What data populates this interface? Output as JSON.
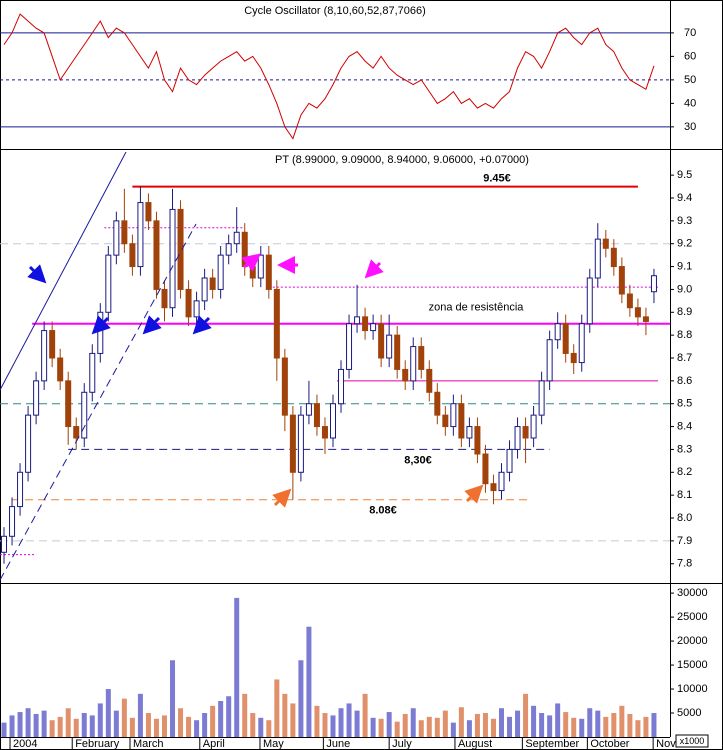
{
  "chart_data": {
    "type": "candlestick",
    "title": "PT (8.99000, 9.09000, 8.94000, 9.06000, +0.07000)",
    "up_color": "#1a1a80",
    "down_color": "#a0420a",
    "xlim": [
      -0.5,
      83
    ],
    "xticks": [
      {
        "value": 0.75,
        "label": "2004"
      },
      {
        "value": 8.5,
        "label": "February"
      },
      {
        "value": 15.7,
        "label": "March"
      },
      {
        "value": 24.4,
        "label": "April"
      },
      {
        "value": 31.9,
        "label": "May"
      },
      {
        "value": 39.8,
        "label": "June"
      },
      {
        "value": 48,
        "label": "July"
      },
      {
        "value": 56.2,
        "label": "August"
      },
      {
        "value": 64.6,
        "label": "September"
      },
      {
        "value": 72.7,
        "label": "October"
      },
      {
        "value": 80.9,
        "label": "Nov"
      }
    ],
    "ylim": [
      7.72,
      9.61
    ],
    "yticks": [
      7.8,
      7.9,
      {
        "value": 8,
        "label": "8.0"
      },
      8.1,
      8.2,
      8.3,
      8.4,
      8.5,
      8.6,
      8.7,
      8.8,
      8.9,
      {
        "value": 9,
        "label": "9.0"
      },
      9.1,
      9.2,
      9.3,
      9.4,
      9.5
    ],
    "candles": [
      [
        7.85,
        7.96,
        7.8,
        7.92
      ],
      [
        7.92,
        8.09,
        7.88,
        8.05
      ],
      [
        8.05,
        8.24,
        8.01,
        8.2
      ],
      [
        8.2,
        8.49,
        8.16,
        8.45
      ],
      [
        8.45,
        8.64,
        8.41,
        8.6
      ],
      [
        8.6,
        8.86,
        8.56,
        8.82
      ],
      [
        8.82,
        8.86,
        8.66,
        8.7
      ],
      [
        8.7,
        8.74,
        8.56,
        8.6
      ],
      [
        8.6,
        8.64,
        8.32,
        8.4
      ],
      [
        8.4,
        8.44,
        8.3,
        8.35
      ],
      [
        8.35,
        8.59,
        8.31,
        8.55
      ],
      [
        8.55,
        8.76,
        8.51,
        8.72
      ],
      [
        8.72,
        8.94,
        8.68,
        8.9
      ],
      [
        8.9,
        9.19,
        8.86,
        9.15
      ],
      [
        9.15,
        9.34,
        9.11,
        9.3
      ],
      [
        9.3,
        9.44,
        9.16,
        9.2
      ],
      [
        9.2,
        9.24,
        9.06,
        9.1
      ],
      [
        9.1,
        9.45,
        9.06,
        9.38
      ],
      [
        9.38,
        9.42,
        9.26,
        9.3
      ],
      [
        9.3,
        9.34,
        8.96,
        9.0
      ],
      [
        9.0,
        9.04,
        8.86,
        8.92
      ],
      [
        8.92,
        9.44,
        8.88,
        9.35
      ],
      [
        9.35,
        9.39,
        8.96,
        9.0
      ],
      [
        9.0,
        9.04,
        8.84,
        8.88
      ],
      [
        8.88,
        8.99,
        8.84,
        8.95
      ],
      [
        8.95,
        9.09,
        8.91,
        9.05
      ],
      [
        9.05,
        9.09,
        8.96,
        9.0
      ],
      [
        9.0,
        9.19,
        8.96,
        9.15
      ],
      [
        9.15,
        9.24,
        9.11,
        9.2
      ],
      [
        9.2,
        9.36,
        9.16,
        9.25
      ],
      [
        9.25,
        9.29,
        9.06,
        9.1
      ],
      [
        9.1,
        9.14,
        9.01,
        9.05
      ],
      [
        9.05,
        9.19,
        9.01,
        9.15
      ],
      [
        9.15,
        9.19,
        8.96,
        9.0
      ],
      [
        9.0,
        9.04,
        8.6,
        8.7
      ],
      [
        8.7,
        8.74,
        8.38,
        8.45
      ],
      [
        8.45,
        8.49,
        8.08,
        8.2
      ],
      [
        8.2,
        8.49,
        8.16,
        8.45
      ],
      [
        8.45,
        8.6,
        8.41,
        8.5
      ],
      [
        8.5,
        8.54,
        8.36,
        8.4
      ],
      [
        8.4,
        8.44,
        8.28,
        8.35
      ],
      [
        8.35,
        8.54,
        8.31,
        8.5
      ],
      [
        8.5,
        8.69,
        8.46,
        8.65
      ],
      [
        8.65,
        8.89,
        8.61,
        8.85
      ],
      [
        8.85,
        9.02,
        8.81,
        8.88
      ],
      [
        8.88,
        8.92,
        8.78,
        8.82
      ],
      [
        8.82,
        8.89,
        8.78,
        8.85
      ],
      [
        8.85,
        8.89,
        8.66,
        8.7
      ],
      [
        8.7,
        8.89,
        8.66,
        8.8
      ],
      [
        8.8,
        8.84,
        8.61,
        8.65
      ],
      [
        8.65,
        8.69,
        8.56,
        8.6
      ],
      [
        8.6,
        8.79,
        8.56,
        8.75
      ],
      [
        8.75,
        8.79,
        8.61,
        8.65
      ],
      [
        8.65,
        8.69,
        8.51,
        8.55
      ],
      [
        8.55,
        8.59,
        8.41,
        8.45
      ],
      [
        8.45,
        8.49,
        8.36,
        8.4
      ],
      [
        8.4,
        8.54,
        8.36,
        8.5
      ],
      [
        8.5,
        8.54,
        8.31,
        8.35
      ],
      [
        8.35,
        8.44,
        8.31,
        8.4
      ],
      [
        8.4,
        8.44,
        8.24,
        8.28
      ],
      [
        8.28,
        8.32,
        8.11,
        8.15
      ],
      [
        8.15,
        8.19,
        8.06,
        8.12
      ],
      [
        8.12,
        8.24,
        8.08,
        8.2
      ],
      [
        8.2,
        8.34,
        8.16,
        8.3
      ],
      [
        8.3,
        8.44,
        8.26,
        8.4
      ],
      [
        8.4,
        8.44,
        8.24,
        8.35
      ],
      [
        8.35,
        8.49,
        8.31,
        8.45
      ],
      [
        8.45,
        8.64,
        8.41,
        8.6
      ],
      [
        8.6,
        8.82,
        8.56,
        8.78
      ],
      [
        8.78,
        8.9,
        8.74,
        8.85
      ],
      [
        8.85,
        8.89,
        8.68,
        8.72
      ],
      [
        8.72,
        8.76,
        8.63,
        8.68
      ],
      [
        8.68,
        8.89,
        8.64,
        8.85
      ],
      [
        8.85,
        9.09,
        8.81,
        9.05
      ],
      [
        9.05,
        9.29,
        9.01,
        9.22
      ],
      [
        9.22,
        9.26,
        9.14,
        9.18
      ],
      [
        9.18,
        9.22,
        9.06,
        9.1
      ],
      [
        9.1,
        9.14,
        8.94,
        8.98
      ],
      [
        8.98,
        9.02,
        8.88,
        8.92
      ],
      [
        8.92,
        8.96,
        8.84,
        8.88
      ],
      [
        8.88,
        8.92,
        8.8,
        8.86
      ],
      [
        8.99,
        9.09,
        8.94,
        9.06
      ]
    ],
    "levels": [
      {
        "value": 9.45,
        "label": "9.45€",
        "color": "#e00000",
        "style": "solid",
        "x": [
          16,
          79
        ]
      },
      {
        "value": 8.85,
        "label": "zona de resistência",
        "color": "#ff00ff",
        "style": "solid",
        "x": [
          3.5,
          83
        ]
      },
      {
        "value": 8.3,
        "label": "8,30€",
        "color": "#1a1a80",
        "style": "dashed",
        "x": [
          8,
          68
        ]
      },
      {
        "value": 8.08,
        "label": "8.08€",
        "color": "#f08030",
        "label_color": "#e00000",
        "style": "dashed",
        "x": [
          1,
          65.5
        ]
      },
      {
        "value": 8.6,
        "color": "#e000a0",
        "style": "solid",
        "x": [
          41.5,
          81.5
        ]
      },
      {
        "value": 9.27,
        "color": "#e000e0",
        "style": "dotted",
        "x": [
          12.5,
          30
        ]
      },
      {
        "value": 9.01,
        "color": "#e000e0",
        "style": "dotted",
        "x": [
          33.5,
          81.5
        ]
      },
      {
        "value": 8.5,
        "color": "#2a8a80",
        "style": "dashed",
        "x": [
          -0.5,
          83
        ]
      },
      {
        "value": 9.2,
        "color": "#c8c8d8",
        "style": "dashed",
        "x": [
          -0.5,
          83
        ]
      },
      {
        "value": 7.9,
        "color": "#c8c8d8",
        "style": "dashed",
        "x": [
          -0.5,
          83
        ]
      },
      {
        "value": 7.84,
        "color": "#e000e0",
        "style": "dotted",
        "x": [
          -0.5,
          4
        ]
      }
    ],
    "oscillator": {
      "title": "Cycle Oscillator (8,10,60,52,87,7066)",
      "color": "#d00000",
      "ylim": [
        21,
        84
      ],
      "yticks": [
        30,
        40,
        50,
        60,
        70
      ],
      "reference_lines": [
        {
          "value": 70,
          "style": "solid"
        },
        {
          "value": 50,
          "style": "dashed"
        },
        {
          "value": 30,
          "style": "solid"
        }
      ],
      "values": [
        65,
        70,
        78,
        75,
        72,
        70,
        60,
        50,
        55,
        60,
        65,
        70,
        75,
        68,
        72,
        70,
        65,
        60,
        55,
        62,
        50,
        45,
        55,
        50,
        48,
        52,
        55,
        58,
        60,
        62,
        58,
        60,
        55,
        48,
        40,
        30,
        25,
        35,
        40,
        38,
        42,
        48,
        55,
        60,
        62,
        58,
        55,
        60,
        55,
        52,
        50,
        48,
        50,
        45,
        40,
        42,
        45,
        40,
        42,
        38,
        40,
        38,
        42,
        45,
        55,
        62,
        60,
        55,
        62,
        70,
        72,
        68,
        65,
        70,
        72,
        65,
        62,
        55,
        50,
        48,
        46,
        56
      ]
    },
    "volume": {
      "up_color": "#7b7bd4",
      "down_color": "#e0906a",
      "ylim": [
        0,
        31900
      ],
      "yticks": [
        5000,
        10000,
        15000,
        20000,
        25000,
        30000
      ],
      "unit_label": "x1000",
      "values": [
        3000,
        4500,
        5200,
        6000,
        4800,
        5500,
        3500,
        4200,
        6000,
        3800,
        5000,
        4500,
        7000,
        10000,
        5500,
        8000,
        4000,
        9000,
        5000,
        3800,
        4500,
        16000,
        6000,
        4200,
        3500,
        5000,
        6500,
        7500,
        8500,
        29000,
        9000,
        5000,
        4000,
        3500,
        12000,
        9000,
        7000,
        16000,
        23000,
        6500,
        5000,
        4500,
        6000,
        7000,
        5500,
        9000,
        4000,
        3800,
        5200,
        3200,
        4800,
        6000,
        3500,
        4200,
        4000,
        5500,
        3000,
        6200,
        3500,
        4800,
        5000,
        3800,
        6000,
        4200,
        5500,
        9000,
        6500,
        5000,
        4500,
        7000,
        5200,
        4000,
        3800,
        6000,
        5500,
        4200,
        5000,
        6500,
        4800,
        3500,
        4200,
        5000
      ]
    }
  }
}
